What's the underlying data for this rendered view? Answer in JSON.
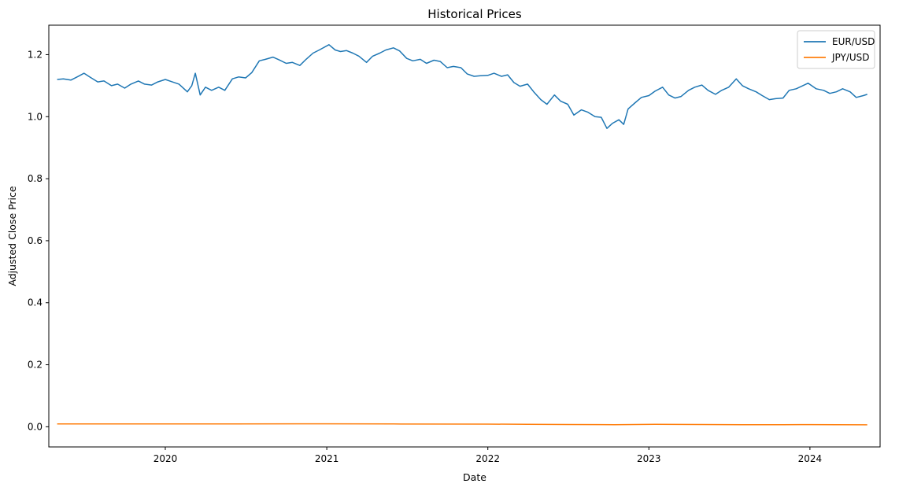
{
  "chart_data": {
    "type": "line",
    "title": "Historical Prices",
    "xlabel": "Date",
    "ylabel": "Adjusted Close Price",
    "xlim": [
      "2019-04-12",
      "2024-06-08"
    ],
    "ylim": [
      -0.065,
      1.295
    ],
    "x_ticks": [
      "2020-01-01",
      "2021-01-01",
      "2022-01-01",
      "2023-01-01",
      "2024-01-01"
    ],
    "x_tick_labels": [
      "2020",
      "2021",
      "2022",
      "2023",
      "2024"
    ],
    "y_ticks": [
      0.0,
      0.2,
      0.4,
      0.6,
      0.8,
      1.0,
      1.2
    ],
    "y_tick_labels": [
      "0.0",
      "0.2",
      "0.4",
      "0.6",
      "0.8",
      "1.0",
      "1.2"
    ],
    "grid": false,
    "legend_position": "top-right",
    "series": [
      {
        "name": "EUR/USD",
        "color": "#1f77b4",
        "points": [
          [
            "2019-05-01",
            1.12
          ],
          [
            "2019-05-15",
            1.122
          ],
          [
            "2019-06-01",
            1.118
          ],
          [
            "2019-06-15",
            1.128
          ],
          [
            "2019-07-01",
            1.14
          ],
          [
            "2019-07-15",
            1.127
          ],
          [
            "2019-08-01",
            1.112
          ],
          [
            "2019-08-15",
            1.115
          ],
          [
            "2019-09-01",
            1.1
          ],
          [
            "2019-09-15",
            1.105
          ],
          [
            "2019-10-01",
            1.092
          ],
          [
            "2019-10-15",
            1.105
          ],
          [
            "2019-11-01",
            1.115
          ],
          [
            "2019-11-15",
            1.105
          ],
          [
            "2019-12-01",
            1.102
          ],
          [
            "2019-12-15",
            1.112
          ],
          [
            "2020-01-01",
            1.12
          ],
          [
            "2020-01-15",
            1.113
          ],
          [
            "2020-02-01",
            1.105
          ],
          [
            "2020-02-20",
            1.08
          ],
          [
            "2020-03-01",
            1.1
          ],
          [
            "2020-03-09",
            1.14
          ],
          [
            "2020-03-20",
            1.07
          ],
          [
            "2020-04-01",
            1.095
          ],
          [
            "2020-04-15",
            1.085
          ],
          [
            "2020-05-01",
            1.095
          ],
          [
            "2020-05-15",
            1.085
          ],
          [
            "2020-06-01",
            1.122
          ],
          [
            "2020-06-15",
            1.128
          ],
          [
            "2020-07-01",
            1.125
          ],
          [
            "2020-07-15",
            1.142
          ],
          [
            "2020-08-01",
            1.18
          ],
          [
            "2020-08-15",
            1.185
          ],
          [
            "2020-09-01",
            1.192
          ],
          [
            "2020-09-15",
            1.183
          ],
          [
            "2020-10-01",
            1.172
          ],
          [
            "2020-10-15",
            1.175
          ],
          [
            "2020-11-01",
            1.165
          ],
          [
            "2020-11-15",
            1.185
          ],
          [
            "2020-12-01",
            1.205
          ],
          [
            "2020-12-15",
            1.215
          ],
          [
            "2021-01-06",
            1.232
          ],
          [
            "2021-01-20",
            1.215
          ],
          [
            "2021-02-01",
            1.21
          ],
          [
            "2021-02-15",
            1.213
          ],
          [
            "2021-03-01",
            1.205
          ],
          [
            "2021-03-15",
            1.195
          ],
          [
            "2021-04-01",
            1.175
          ],
          [
            "2021-04-15",
            1.195
          ],
          [
            "2021-05-01",
            1.205
          ],
          [
            "2021-05-15",
            1.215
          ],
          [
            "2021-06-01",
            1.222
          ],
          [
            "2021-06-15",
            1.212
          ],
          [
            "2021-07-01",
            1.188
          ],
          [
            "2021-07-15",
            1.18
          ],
          [
            "2021-08-01",
            1.185
          ],
          [
            "2021-08-15",
            1.172
          ],
          [
            "2021-09-01",
            1.182
          ],
          [
            "2021-09-15",
            1.178
          ],
          [
            "2021-10-01",
            1.158
          ],
          [
            "2021-10-15",
            1.162
          ],
          [
            "2021-11-01",
            1.158
          ],
          [
            "2021-11-15",
            1.138
          ],
          [
            "2021-12-01",
            1.13
          ],
          [
            "2021-12-15",
            1.132
          ],
          [
            "2022-01-01",
            1.133
          ],
          [
            "2022-01-15",
            1.14
          ],
          [
            "2022-02-01",
            1.13
          ],
          [
            "2022-02-15",
            1.135
          ],
          [
            "2022-03-01",
            1.11
          ],
          [
            "2022-03-15",
            1.098
          ],
          [
            "2022-04-01",
            1.105
          ],
          [
            "2022-04-15",
            1.08
          ],
          [
            "2022-05-01",
            1.055
          ],
          [
            "2022-05-15",
            1.04
          ],
          [
            "2022-06-01",
            1.07
          ],
          [
            "2022-06-15",
            1.05
          ],
          [
            "2022-07-01",
            1.04
          ],
          [
            "2022-07-15",
            1.005
          ],
          [
            "2022-08-01",
            1.022
          ],
          [
            "2022-08-15",
            1.015
          ],
          [
            "2022-09-01",
            1.0
          ],
          [
            "2022-09-15",
            0.998
          ],
          [
            "2022-09-28",
            0.962
          ],
          [
            "2022-10-10",
            0.978
          ],
          [
            "2022-10-25",
            0.99
          ],
          [
            "2022-11-05",
            0.975
          ],
          [
            "2022-11-15",
            1.025
          ],
          [
            "2022-12-01",
            1.045
          ],
          [
            "2022-12-15",
            1.062
          ],
          [
            "2023-01-01",
            1.068
          ],
          [
            "2023-01-15",
            1.082
          ],
          [
            "2023-02-01",
            1.095
          ],
          [
            "2023-02-15",
            1.07
          ],
          [
            "2023-03-01",
            1.06
          ],
          [
            "2023-03-15",
            1.065
          ],
          [
            "2023-04-01",
            1.085
          ],
          [
            "2023-04-15",
            1.095
          ],
          [
            "2023-05-01",
            1.102
          ],
          [
            "2023-05-15",
            1.085
          ],
          [
            "2023-06-01",
            1.072
          ],
          [
            "2023-06-15",
            1.085
          ],
          [
            "2023-07-01",
            1.095
          ],
          [
            "2023-07-18",
            1.122
          ],
          [
            "2023-08-01",
            1.1
          ],
          [
            "2023-08-15",
            1.09
          ],
          [
            "2023-09-01",
            1.08
          ],
          [
            "2023-09-15",
            1.068
          ],
          [
            "2023-10-01",
            1.055
          ],
          [
            "2023-10-15",
            1.058
          ],
          [
            "2023-11-01",
            1.06
          ],
          [
            "2023-11-15",
            1.085
          ],
          [
            "2023-12-01",
            1.09
          ],
          [
            "2023-12-28",
            1.108
          ],
          [
            "2024-01-15",
            1.09
          ],
          [
            "2024-02-01",
            1.085
          ],
          [
            "2024-02-15",
            1.075
          ],
          [
            "2024-03-01",
            1.08
          ],
          [
            "2024-03-15",
            1.09
          ],
          [
            "2024-04-01",
            1.08
          ],
          [
            "2024-04-15",
            1.062
          ],
          [
            "2024-05-01",
            1.068
          ],
          [
            "2024-05-10",
            1.072
          ]
        ]
      },
      {
        "name": "JPY/USD",
        "color": "#ff7f0e",
        "points": [
          [
            "2019-05-01",
            0.009
          ],
          [
            "2019-09-01",
            0.0093
          ],
          [
            "2020-01-01",
            0.0092
          ],
          [
            "2020-03-01",
            0.0093
          ],
          [
            "2020-06-01",
            0.0093
          ],
          [
            "2021-01-01",
            0.0096
          ],
          [
            "2021-06-01",
            0.0091
          ],
          [
            "2022-01-01",
            0.0087
          ],
          [
            "2022-04-01",
            0.008
          ],
          [
            "2022-07-01",
            0.0073
          ],
          [
            "2022-10-15",
            0.0067
          ],
          [
            "2023-01-15",
            0.0077
          ],
          [
            "2023-05-01",
            0.0073
          ],
          [
            "2023-08-01",
            0.0069
          ],
          [
            "2023-11-01",
            0.0066
          ],
          [
            "2024-01-01",
            0.0071
          ],
          [
            "2024-03-01",
            0.0067
          ],
          [
            "2024-05-10",
            0.0064
          ]
        ]
      }
    ]
  }
}
